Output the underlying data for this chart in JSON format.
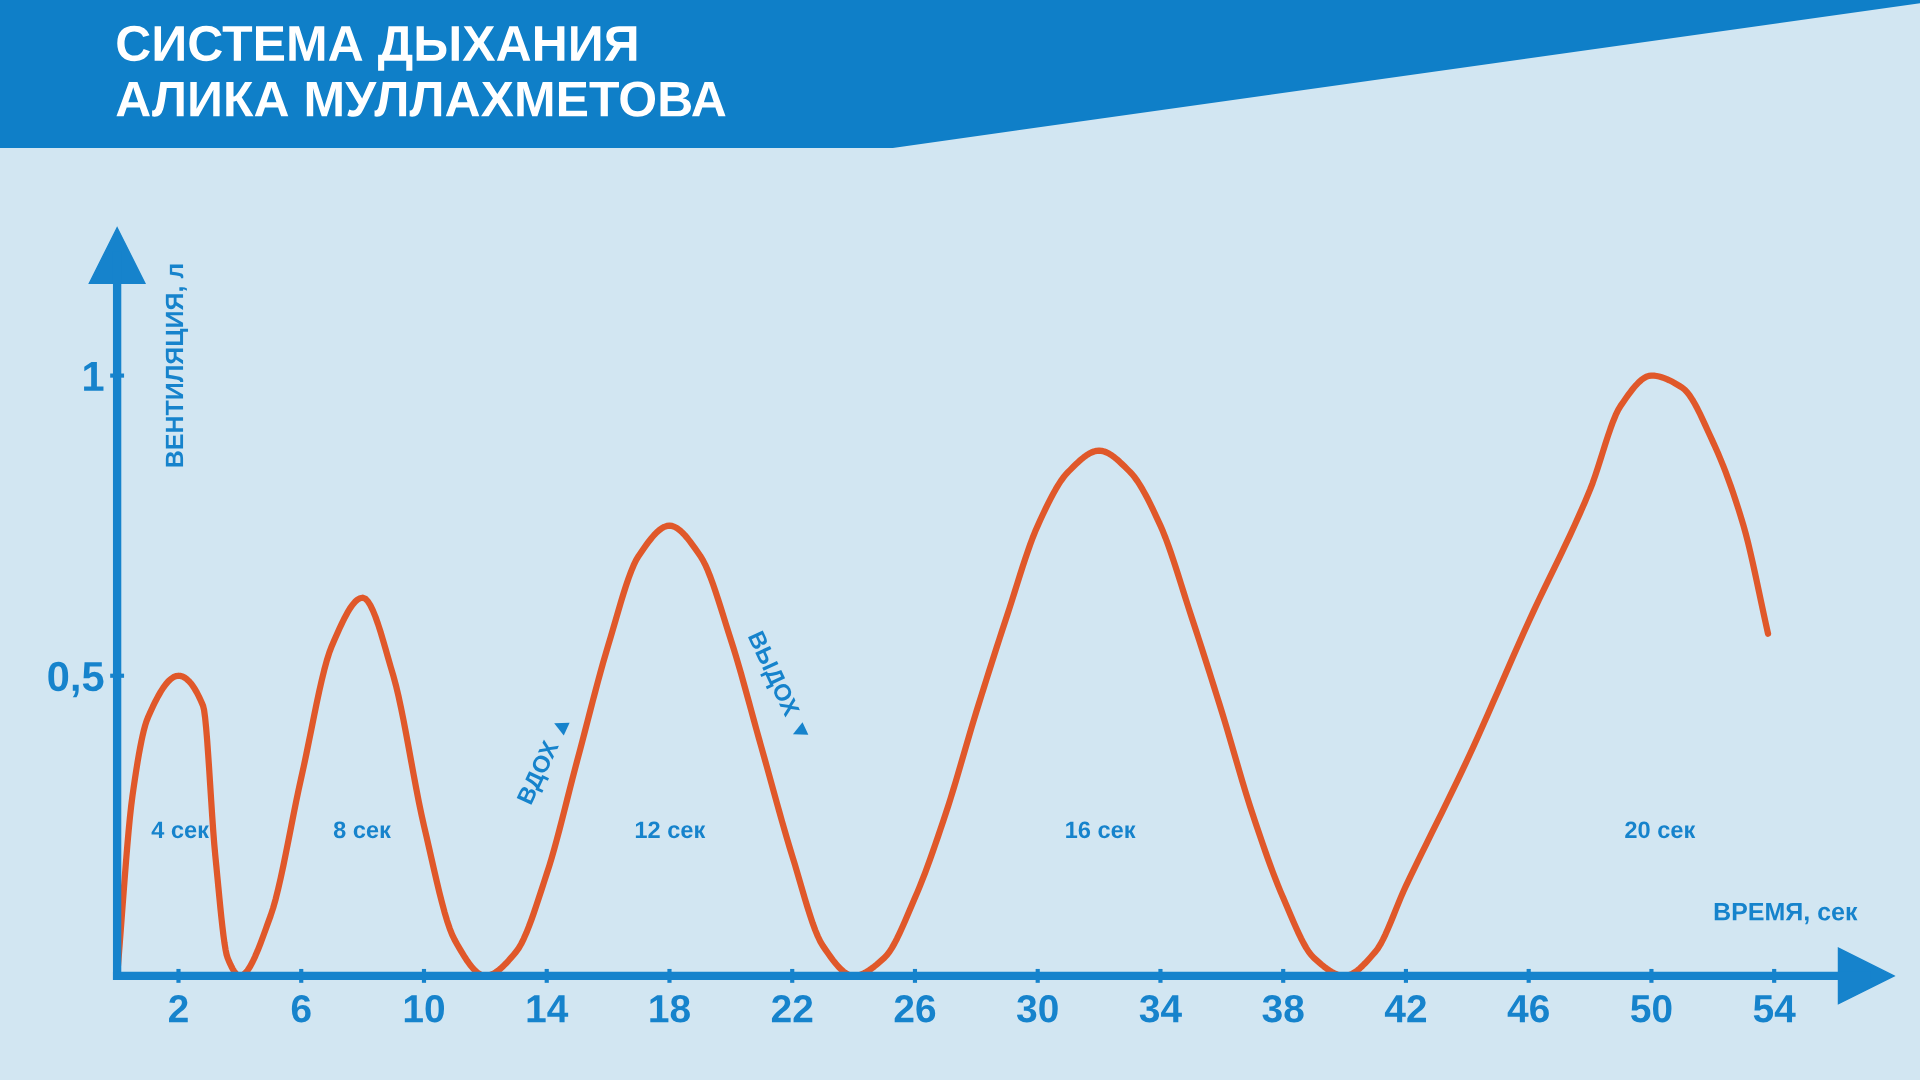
{
  "chart_data": {
    "type": "line",
    "title": "СИСТЕМА ДЫХАНИЯ\nАЛИКА МУЛЛАХМЕТОВА",
    "xlabel": "ВРЕМЯ, сек",
    "ylabel": "ВЕНТИЛЯЦИЯ, л",
    "xlim": [
      0,
      57
    ],
    "ylim": [
      0,
      1.2
    ],
    "xticks": [
      2,
      6,
      10,
      14,
      18,
      22,
      26,
      30,
      34,
      38,
      42,
      46,
      50,
      54
    ],
    "yticks": [
      {
        "value": 0.5,
        "label": "0,5"
      },
      {
        "value": 1,
        "label": "1"
      }
    ],
    "grid": false,
    "marker": "none",
    "line_style": "solid",
    "series": [
      {
        "color": "#e0582a",
        "x": [
          0,
          0.5,
          1,
          2,
          2.8,
          3.2,
          3.6,
          4,
          5,
          6,
          7,
          8,
          9,
          10,
          11,
          12,
          13,
          14,
          15,
          16,
          17,
          18,
          19,
          20,
          21,
          22,
          23,
          24,
          25,
          26,
          27,
          28,
          29,
          30,
          31,
          32,
          33,
          34,
          35,
          36,
          37,
          38,
          39,
          40,
          41,
          42,
          44,
          46,
          48,
          49,
          50,
          51,
          52,
          53,
          53.8
        ],
        "values": [
          0,
          0.3,
          0.43,
          0.5,
          0.45,
          0.2,
          0.03,
          0,
          0.1,
          0.33,
          0.55,
          0.63,
          0.5,
          0.25,
          0.06,
          0,
          0.04,
          0.17,
          0.36,
          0.55,
          0.7,
          0.75,
          0.7,
          0.56,
          0.38,
          0.2,
          0.05,
          0,
          0.03,
          0.13,
          0.27,
          0.44,
          0.6,
          0.75,
          0.84,
          0.875,
          0.84,
          0.75,
          0.6,
          0.44,
          0.27,
          0.13,
          0.03,
          0,
          0.04,
          0.15,
          0.36,
          0.59,
          0.81,
          0.95,
          1.0,
          0.98,
          0.89,
          0.75,
          0.57
        ]
      }
    ],
    "annotations": [
      "4 сек",
      "8 сек",
      "12 сек",
      "16 сек",
      "20 сек",
      "ВДОХ ▲",
      "ВЫДОХ ▼"
    ]
  }
}
